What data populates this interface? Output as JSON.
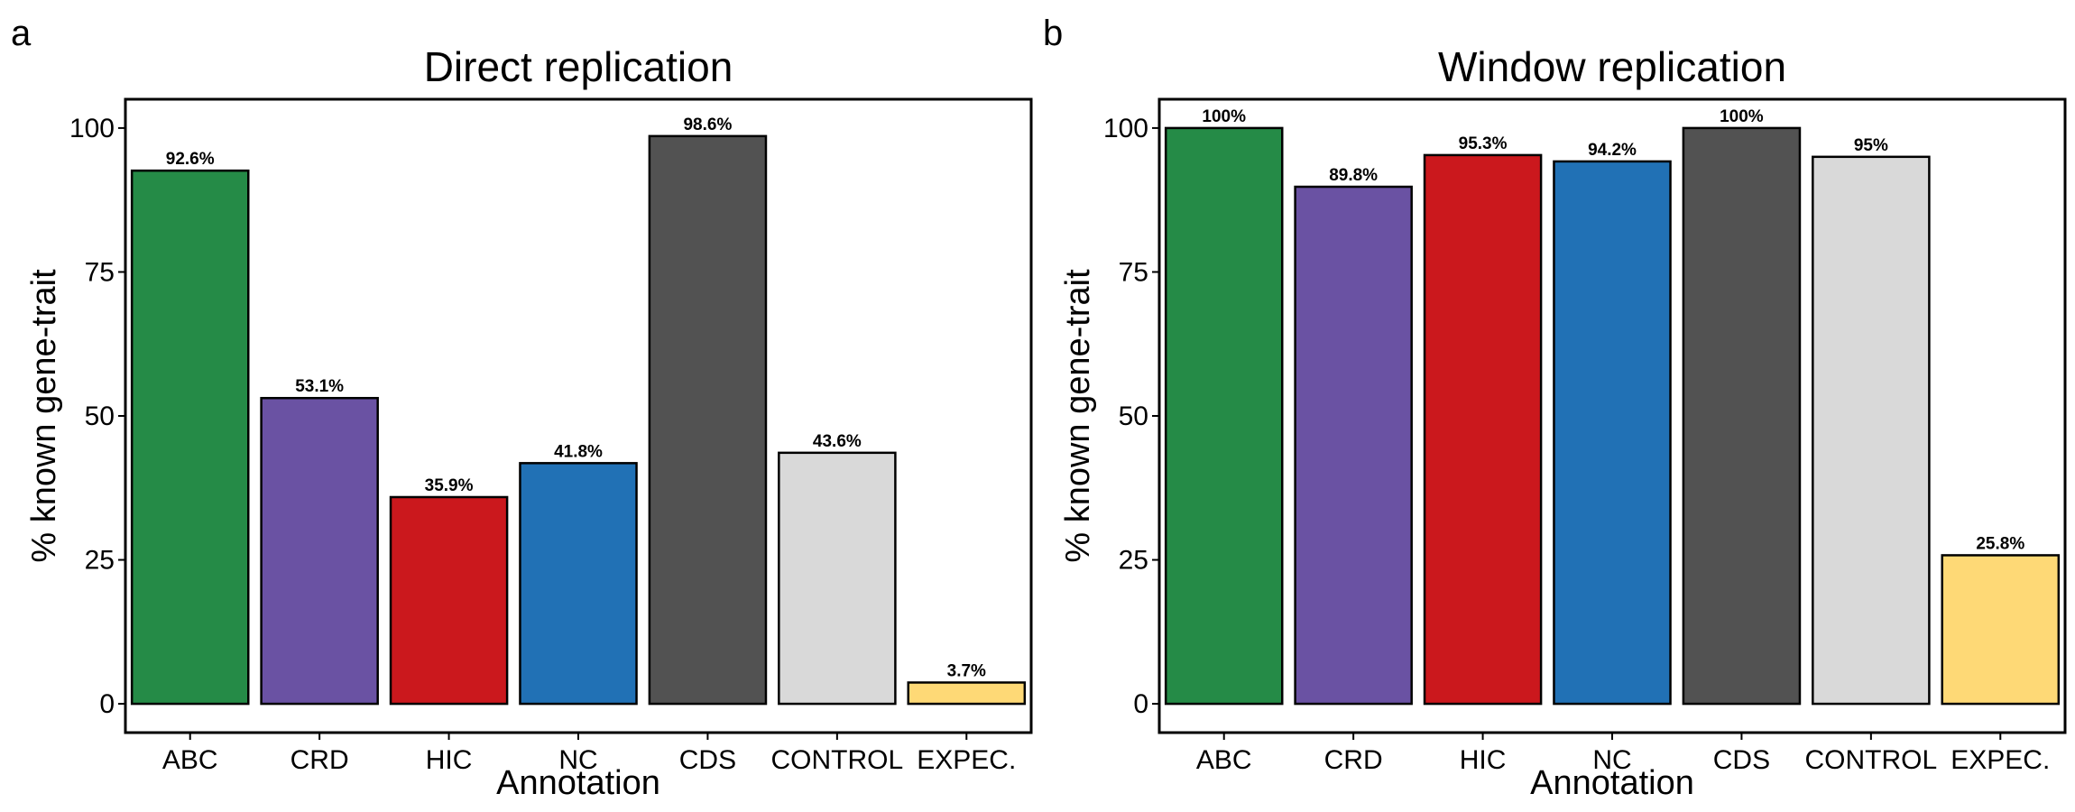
{
  "colors": {
    "ABC": "#258b47",
    "CRD": "#6a52a3",
    "HIC": "#cb181d",
    "NC": "#2171b5",
    "CDS": "#525252",
    "CONTROL": "#d9d9d9",
    "EXPEC.": "#fed976"
  },
  "chart_data": [
    {
      "type": "bar",
      "panel_letter": "a",
      "title": "Direct replication",
      "xlabel": "Annotation",
      "ylabel": "% known gene-trait",
      "categories": [
        "ABC",
        "CRD",
        "HIC",
        "NC",
        "CDS",
        "CONTROL",
        "EXPEC."
      ],
      "values": [
        92.6,
        53.1,
        35.9,
        41.8,
        98.6,
        43.6,
        3.7
      ],
      "data_labels": [
        "92.6%",
        "53.1%",
        "35.9%",
        "41.8%",
        "98.6%",
        "43.6%",
        "3.7%"
      ],
      "yticks": [
        0,
        25,
        50,
        75,
        100
      ],
      "ylim": [
        -5,
        105
      ],
      "grid": false,
      "legend": "none"
    },
    {
      "type": "bar",
      "panel_letter": "b",
      "title": "Window replication",
      "xlabel": "Annotation",
      "ylabel": "% known gene-trait",
      "categories": [
        "ABC",
        "CRD",
        "HIC",
        "NC",
        "CDS",
        "CONTROL",
        "EXPEC."
      ],
      "values": [
        100,
        89.8,
        95.3,
        94.2,
        100,
        95,
        25.8
      ],
      "data_labels": [
        "100%",
        "89.8%",
        "95.3%",
        "94.2%",
        "100%",
        "95%",
        "25.8%"
      ],
      "yticks": [
        0,
        25,
        50,
        75,
        100
      ],
      "ylim": [
        -5,
        105
      ],
      "grid": false,
      "legend": "none"
    }
  ]
}
